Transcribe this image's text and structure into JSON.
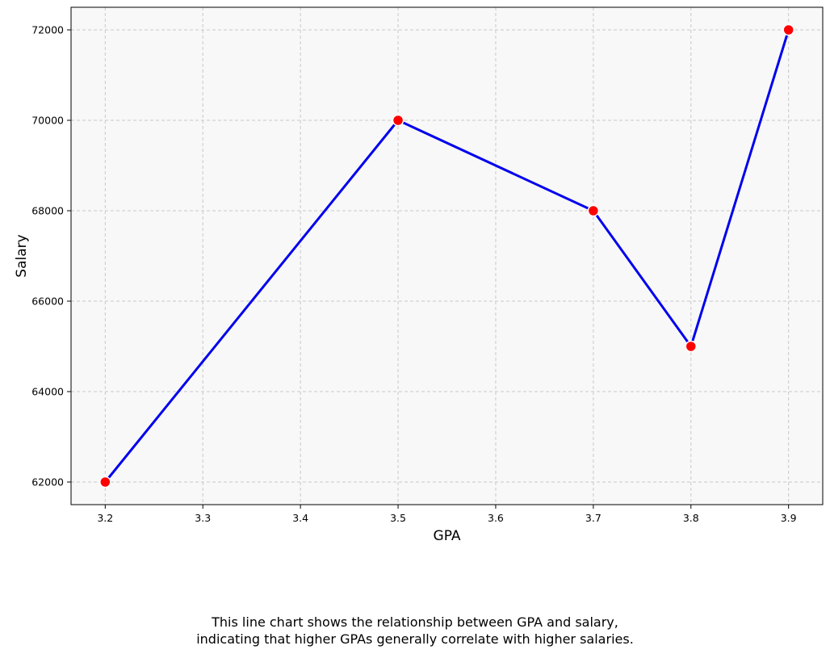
{
  "chart_data": {
    "type": "line",
    "x": [
      3.2,
      3.5,
      3.7,
      3.8,
      3.9
    ],
    "series": [
      {
        "values": [
          62000,
          70000,
          68000,
          65000,
          72000
        ]
      }
    ],
    "xlabel": "GPA",
    "ylabel": "Salary",
    "xticks": [
      "3.2",
      "3.3",
      "3.4",
      "3.5",
      "3.6",
      "3.7",
      "3.8",
      "3.9"
    ],
    "yticks": [
      "62000",
      "64000",
      "66000",
      "68000",
      "70000",
      "72000"
    ],
    "xlim": [
      3.165,
      3.935
    ],
    "ylim": [
      61500,
      72500
    ],
    "grid": true,
    "line_color": "#0000ee",
    "marker_color": "#ff0000",
    "plot_background": "#f8f8f8"
  },
  "caption": {
    "line1": "This line chart shows the relationship between GPA and salary,",
    "line2": "indicating that higher GPAs generally correlate with higher salaries."
  }
}
